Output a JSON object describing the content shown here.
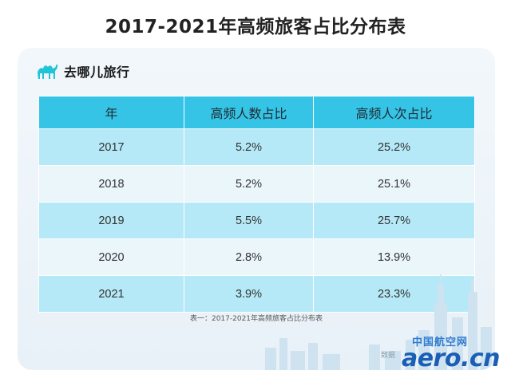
{
  "title": "2017-2021年高频旅客占比分布表",
  "brand": {
    "name": "去哪儿旅行",
    "icon": "camel-icon",
    "accent": "#20c3d8"
  },
  "table": {
    "headers": [
      "年",
      "高频人数占比",
      "高频人次占比"
    ],
    "rows": [
      [
        "2017",
        "5.2%",
        "25.2%"
      ],
      [
        "2018",
        "5.2%",
        "25.1%"
      ],
      [
        "2019",
        "5.5%",
        "25.7%"
      ],
      [
        "2020",
        "2.8%",
        "13.9%"
      ],
      [
        "2021",
        "3.9%",
        "23.3%"
      ]
    ],
    "header_color": "#36c4e6",
    "stripe_color": "#b5e9f7"
  },
  "caption": "表一：2017-2021年高频旅客占比分布表",
  "watermark": {
    "top": "中国航空网",
    "main": "aero.cn",
    "source": "数据"
  }
}
